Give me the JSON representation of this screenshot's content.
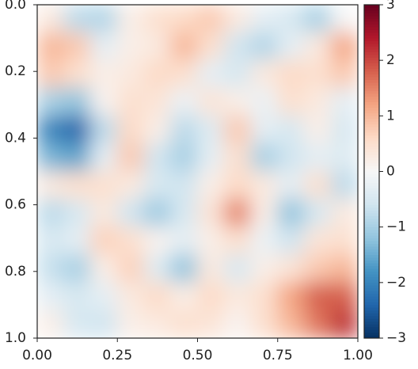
{
  "chart_data": {
    "type": "heatmap",
    "colormap": "RdBu_r",
    "clim": [
      -3,
      3
    ],
    "xlim": [
      0,
      1
    ],
    "ylim": [
      1,
      0
    ],
    "xticks": [
      {
        "value": 0,
        "label": "0.00"
      },
      {
        "value": 0.25,
        "label": "0.25"
      },
      {
        "value": 0.5,
        "label": "0.50"
      },
      {
        "value": 0.75,
        "label": "0.75"
      },
      {
        "value": 1,
        "label": "1.00"
      }
    ],
    "yticks": [
      {
        "value": 0,
        "label": "0.0"
      },
      {
        "value": 0.2,
        "label": "0.2"
      },
      {
        "value": 0.4,
        "label": "0.4"
      },
      {
        "value": 0.6,
        "label": "0.6"
      },
      {
        "value": 0.8,
        "label": "0.8"
      },
      {
        "value": 1,
        "label": "1.0"
      }
    ],
    "colorbar_ticks": [
      3,
      2,
      1,
      0,
      {
        "value": -1,
        "label": "−1"
      },
      {
        "value": -2,
        "label": "−2"
      },
      {
        "value": -3,
        "label": "−3"
      }
    ],
    "z": [
      [
        0.3,
        -0.8,
        -0.9,
        0.2,
        0.5,
        0.6,
        0.8,
        0.3,
        -0.3,
        -0.5,
        -1.0,
        0
      ],
      [
        1.0,
        0.8,
        -0.3,
        0.2,
        0.3,
        1.0,
        0.5,
        -0.6,
        -0.9,
        -0.3,
        0.3,
        1.2
      ],
      [
        0.8,
        0.5,
        0.2,
        0.3,
        0.6,
        0.5,
        -0.3,
        -0.5,
        0.3,
        0.6,
        0.5,
        0.8
      ],
      [
        -1.0,
        -1.2,
        0.1,
        0.5,
        0.4,
        -0.2,
        0.4,
        0.2,
        -0.2,
        0.5,
        0.3,
        -0.3
      ],
      [
        -2.0,
        -2.4,
        -0.8,
        0.6,
        0.2,
        -0.8,
        -0.4,
        0.8,
        -0.3,
        -0.5,
        0.2,
        -0.5
      ],
      [
        -1.4,
        -1.6,
        -0.3,
        0.8,
        -0.6,
        -1.0,
        -0.3,
        0.5,
        -1.0,
        -0.6,
        -0.3,
        -0.4
      ],
      [
        0.3,
        0.5,
        0.5,
        0.3,
        -0.5,
        -0.6,
        0.2,
        0.6,
        0.3,
        -0.3,
        0.5,
        -0.8
      ],
      [
        -0.8,
        -0.5,
        0.3,
        -0.6,
        -1.1,
        -0.5,
        0.4,
        1.5,
        0.2,
        -1.2,
        -0.5,
        0.3
      ],
      [
        -0.5,
        -0.3,
        0.7,
        0.5,
        0.1,
        -0.3,
        0.2,
        0.5,
        -0.2,
        -0.6,
        0.4,
        0.5
      ],
      [
        -0.7,
        -1.0,
        0.2,
        0.7,
        -0.4,
        -1.2,
        0.3,
        -0.5,
        0.2,
        0.4,
        0.8,
        1.0
      ],
      [
        -0.3,
        -0.5,
        -0.3,
        0.3,
        0.6,
        0.2,
        0.6,
        0.3,
        0.5,
        1.2,
        1.8,
        1.8
      ],
      [
        0.2,
        -0.5,
        -0.6,
        0.2,
        0.3,
        0.5,
        0.4,
        0.1,
        0.5,
        1.0,
        1.6,
        2.2
      ]
    ]
  }
}
